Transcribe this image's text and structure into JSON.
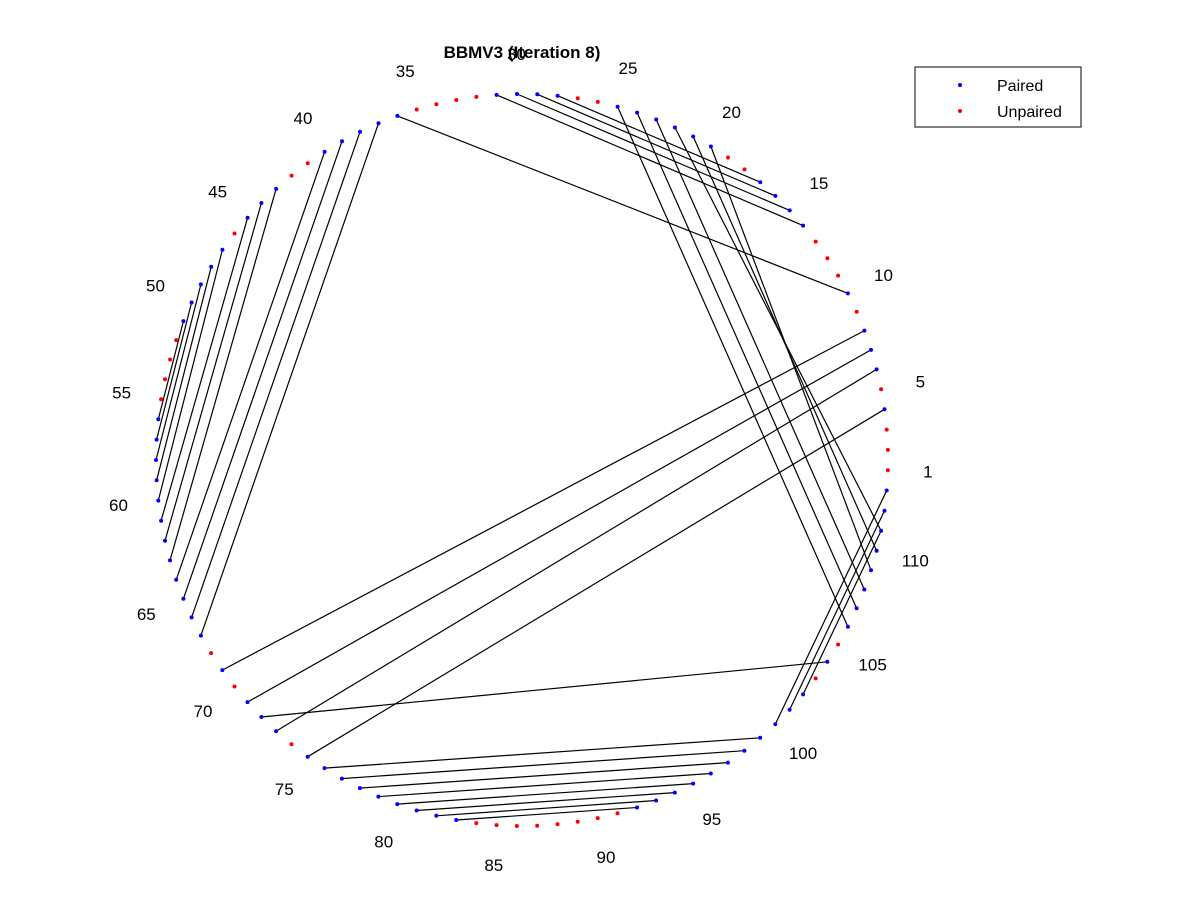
{
  "chart_data": {
    "type": "arc-diagram",
    "layout": "circle",
    "title": "BBMV3 (Iteration 8)",
    "n_positions": 113,
    "index_labels": [
      1,
      5,
      10,
      15,
      20,
      25,
      30,
      35,
      40,
      45,
      50,
      55,
      60,
      65,
      70,
      75,
      80,
      85,
      90,
      95,
      100,
      105,
      110
    ],
    "pairs": [
      [
        4,
        75
      ],
      [
        6,
        73
      ],
      [
        7,
        71
      ],
      [
        8,
        69
      ],
      [
        10,
        36
      ],
      [
        14,
        31
      ],
      [
        15,
        30
      ],
      [
        16,
        29
      ],
      [
        17,
        28
      ],
      [
        20,
        109
      ],
      [
        21,
        110
      ],
      [
        22,
        111
      ],
      [
        23,
        108
      ],
      [
        24,
        107
      ],
      [
        25,
        106
      ],
      [
        37,
        67
      ],
      [
        38,
        66
      ],
      [
        39,
        65
      ],
      [
        40,
        64
      ],
      [
        43,
        63
      ],
      [
        44,
        62
      ],
      [
        45,
        61
      ],
      [
        47,
        60
      ],
      [
        48,
        59
      ],
      [
        49,
        58
      ],
      [
        50,
        57
      ],
      [
        51,
        56
      ],
      [
        72,
        104
      ],
      [
        76,
        99
      ],
      [
        77,
        98
      ],
      [
        78,
        97
      ],
      [
        79,
        96
      ],
      [
        80,
        95
      ],
      [
        81,
        94
      ],
      [
        82,
        93
      ],
      [
        83,
        92
      ],
      [
        100,
        113
      ],
      [
        101,
        112
      ],
      [
        102,
        111
      ]
    ],
    "legend": {
      "position": "top-right",
      "entries": [
        {
          "label": "Paired",
          "color": "#0000ff"
        },
        {
          "label": "Unpaired",
          "color": "#ff0000"
        }
      ]
    },
    "colors": {
      "paired": "#0000ff",
      "unpaired": "#ff0000",
      "line": "#000000"
    }
  }
}
